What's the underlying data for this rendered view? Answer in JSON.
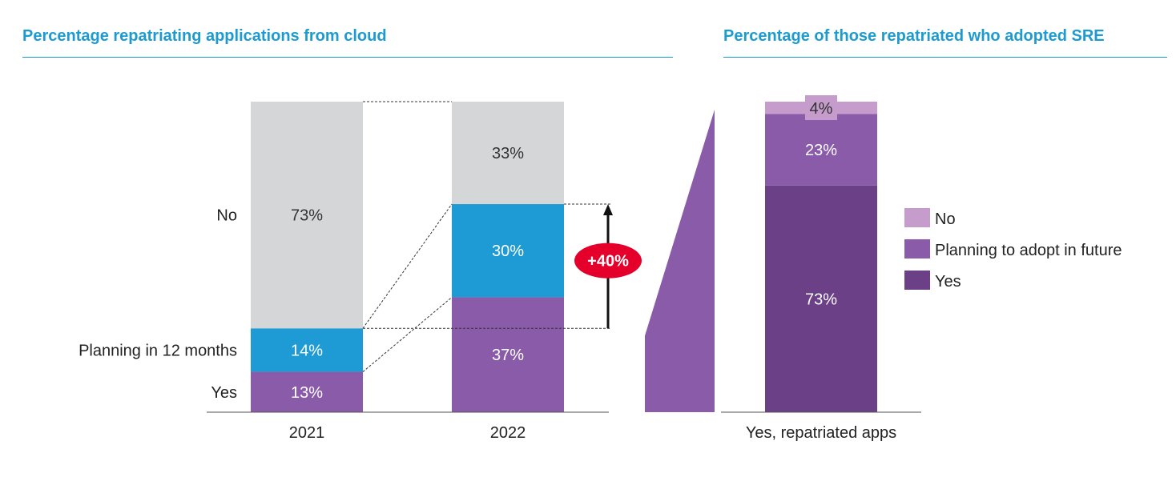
{
  "chart_data": [
    {
      "type": "bar",
      "stacked": true,
      "title": "Percentage repatriating applications from cloud",
      "categories": [
        "2021",
        "2022"
      ],
      "series": [
        {
          "name": "Yes",
          "values": [
            13,
            37
          ],
          "color": "#8a5ba8"
        },
        {
          "name": "Planning in 12 months",
          "values": [
            14,
            30
          ],
          "color": "#1e9bd4"
        },
        {
          "name": "No",
          "values": [
            73,
            33
          ],
          "color": "#d5d6d8"
        }
      ],
      "annotation": {
        "label": "+40%",
        "color": "#e4002b"
      },
      "ylim": [
        0,
        100
      ]
    },
    {
      "type": "bar",
      "stacked": true,
      "title": "Percentage of those repatriated who adopted SRE",
      "categories": [
        "Yes, repatriated apps"
      ],
      "series": [
        {
          "name": "Yes",
          "values": [
            73
          ],
          "color": "#6b4086"
        },
        {
          "name": "Planning to adopt in future",
          "values": [
            23
          ],
          "color": "#8a5ba8"
        },
        {
          "name": "No",
          "values": [
            4
          ],
          "color": "#c59ccc"
        }
      ],
      "legend": [
        "No",
        "Planning to adopt in future",
        "Yes"
      ],
      "legend_position": "right",
      "ylim": [
        0,
        100
      ]
    }
  ]
}
